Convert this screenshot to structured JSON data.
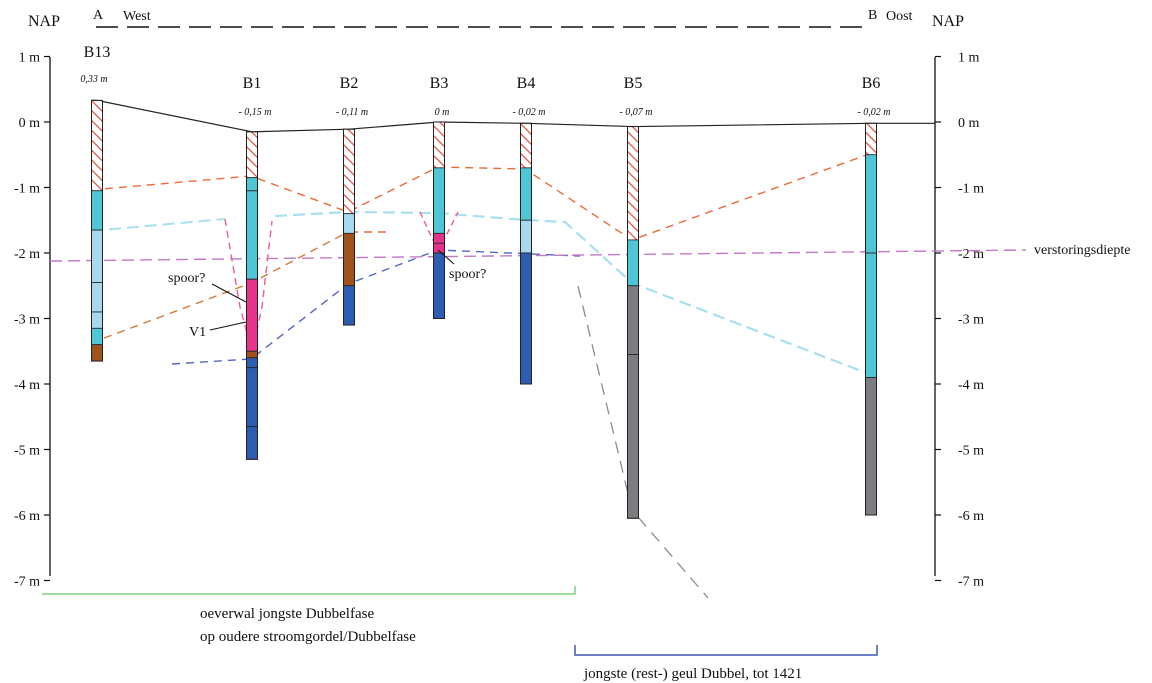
{
  "header": {
    "nap_left": "NAP",
    "nap_right": "NAP",
    "point_a": "A",
    "west": "West",
    "point_b": "B",
    "oost": "Oost"
  },
  "axis": {
    "ticks": [
      "1 m",
      "0 m",
      "-1 m",
      "-2 m",
      "-3 m",
      "-4 m",
      "-5 m",
      "-6 m",
      "-7 m"
    ],
    "values": [
      1,
      0,
      -1,
      -2,
      -3,
      -4,
      -5,
      -6,
      -7
    ]
  },
  "boreholes": [
    {
      "name": "B13",
      "elev": "0,33 m",
      "top": 0.33,
      "bottom": -3.65,
      "layers": [
        {
          "from": 0.33,
          "to": -1.05,
          "type": "hatch"
        },
        {
          "from": -1.05,
          "to": -1.65,
          "type": "cyan"
        },
        {
          "from": -1.65,
          "to": -3.15,
          "type": "lightblue"
        },
        {
          "from": -3.15,
          "to": -3.4,
          "type": "cyan"
        },
        {
          "from": -3.4,
          "to": -3.65,
          "type": "brown"
        }
      ],
      "ticks": [
        -2.45,
        -2.9
      ]
    },
    {
      "name": "B1",
      "elev": "- 0,15 m",
      "top": -0.15,
      "bottom": -5.15,
      "layers": [
        {
          "from": -0.15,
          "to": -0.85,
          "type": "hatch"
        },
        {
          "from": -0.85,
          "to": -2.4,
          "type": "cyan"
        },
        {
          "from": -2.4,
          "to": -3.5,
          "type": "magenta"
        },
        {
          "from": -3.5,
          "to": -3.6,
          "type": "brown"
        },
        {
          "from": -3.6,
          "to": -5.15,
          "type": "blue"
        }
      ],
      "ticks": [
        -1.05,
        -3.75,
        -4.65
      ]
    },
    {
      "name": "B2",
      "elev": "- 0,11 m",
      "top": -0.11,
      "bottom": -3.1,
      "layers": [
        {
          "from": -0.11,
          "to": -1.4,
          "type": "hatch"
        },
        {
          "from": -1.4,
          "to": -1.7,
          "type": "lightblue"
        },
        {
          "from": -1.7,
          "to": -2.5,
          "type": "brown"
        },
        {
          "from": -2.5,
          "to": -3.1,
          "type": "blue"
        }
      ],
      "ticks": []
    },
    {
      "name": "B3",
      "elev": "0 m",
      "top": 0.0,
      "bottom": -3.0,
      "layers": [
        {
          "from": 0.0,
          "to": -0.7,
          "type": "hatch"
        },
        {
          "from": -0.7,
          "to": -1.7,
          "type": "cyan"
        },
        {
          "from": -1.7,
          "to": -2.0,
          "type": "magenta"
        },
        {
          "from": -2.0,
          "to": -3.0,
          "type": "blue"
        }
      ],
      "ticks": [
        -1.85
      ]
    },
    {
      "name": "B4",
      "elev": "- 0,02 m",
      "top": -0.02,
      "bottom": -4.0,
      "layers": [
        {
          "from": -0.02,
          "to": -0.7,
          "type": "hatch"
        },
        {
          "from": -0.7,
          "to": -1.5,
          "type": "cyan"
        },
        {
          "from": -1.5,
          "to": -2.0,
          "type": "lightblue"
        },
        {
          "from": -2.0,
          "to": -4.0,
          "type": "blue"
        }
      ],
      "ticks": []
    },
    {
      "name": "B5",
      "elev": "- 0,07 m",
      "top": -0.07,
      "bottom": -6.05,
      "layers": [
        {
          "from": -0.07,
          "to": -1.8,
          "type": "hatch"
        },
        {
          "from": -1.8,
          "to": -2.5,
          "type": "cyan"
        },
        {
          "from": -2.5,
          "to": -6.05,
          "type": "grey"
        }
      ],
      "ticks": [
        -3.55
      ]
    },
    {
      "name": "B6",
      "elev": "- 0,02 m",
      "top": -0.02,
      "bottom": -6.0,
      "layers": [
        {
          "from": -0.02,
          "to": -0.5,
          "type": "hatch"
        },
        {
          "from": -0.5,
          "to": -3.9,
          "type": "cyan"
        },
        {
          "from": -3.9,
          "to": -6.0,
          "type": "grey"
        }
      ],
      "ticks": [
        -2.0
      ]
    }
  ],
  "colors": {
    "cyan": "#4fc6d6",
    "lightblue": "#a8d8ee",
    "blue": "#2d5db3",
    "brown": "#a0521d",
    "magenta": "#e8338c",
    "grey": "#7b7d80",
    "hatch": "#e04b3a",
    "line_orange": "#ef6a3a",
    "line_lightblue": "#a9e0f0",
    "line_blue": "#5566c9",
    "line_purple": "#c07ac4",
    "line_pink": "#ec5f8c",
    "line_brown": "#d77a3b",
    "line_grey": "#8c8c8c",
    "green": "#7fd17f",
    "navy": "#3d56b8"
  },
  "annotations": {
    "verstoringsdiepte": "verstoringsdiepte",
    "spoor_b1": "spoor?",
    "v1": "V1",
    "spoor_b3": "spoor?"
  },
  "legend": {
    "oeverwal_line1": "oeverwal jongste Dubbelfase",
    "oeverwal_line2": "op oudere stroomgordel/Dubbelfase",
    "geul": "jongste (rest-) geul Dubbel, tot 1421"
  }
}
